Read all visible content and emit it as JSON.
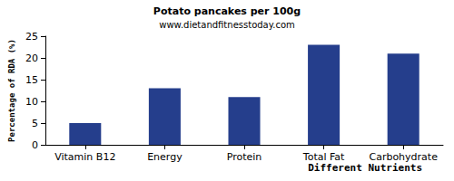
{
  "chart_data": {
    "type": "bar",
    "title": "Potato pancakes per 100g",
    "subtitle": "www.dietandfitnesstoday.com",
    "x_label": "Different Nutrients",
    "y_label": "Percentage of RDA (%)",
    "categories": [
      "Vitamin B12",
      "Energy",
      "Protein",
      "Total Fat",
      "Carbohydrate"
    ],
    "values": [
      5,
      13,
      11,
      23,
      21
    ],
    "color": "#253e8c",
    "ylim": [
      0,
      25
    ],
    "yticks": [
      0,
      5,
      10,
      15,
      20,
      25
    ],
    "grid": false
  }
}
